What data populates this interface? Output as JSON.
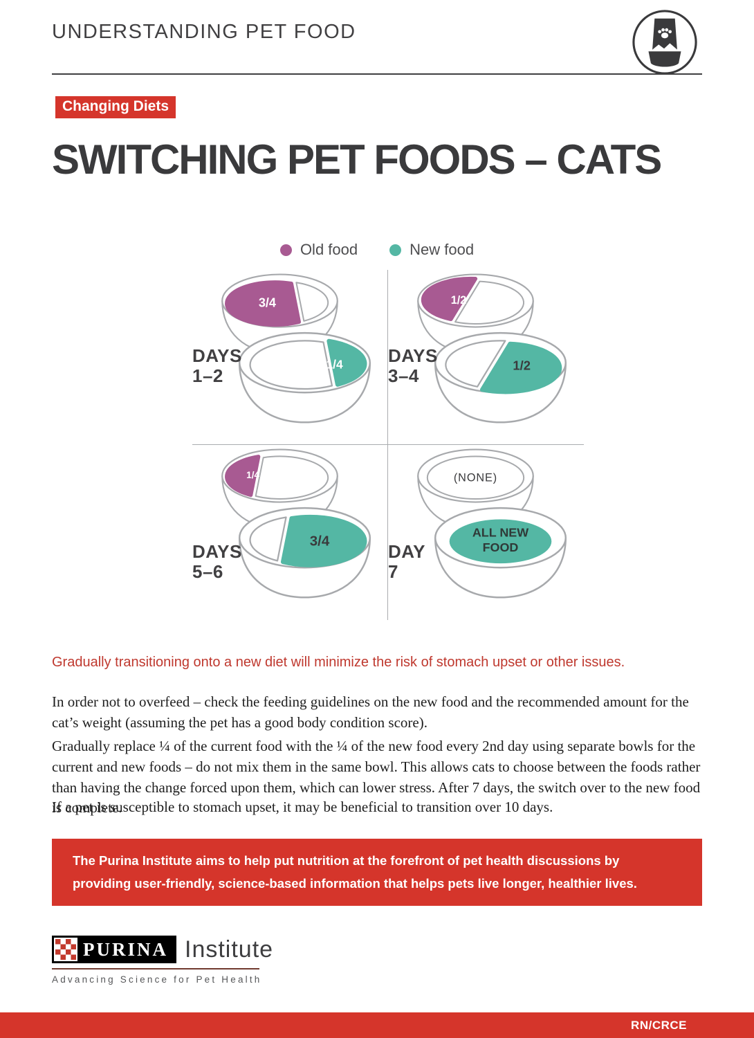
{
  "header": {
    "title": "UNDERSTANDING PET FOOD"
  },
  "badge": {
    "label": "Changing Diets"
  },
  "title": "SWITCHING PET FOODS – CATS",
  "legend": {
    "old": {
      "label": "Old food",
      "color": "#a85a92"
    },
    "new": {
      "label": "New food",
      "color": "#54b7a4"
    }
  },
  "diagram": {
    "quadrants": [
      {
        "day_label": [
          "DAYS",
          "1–2"
        ],
        "top_bowl": {
          "portion": "three_quarter_left",
          "food": "old",
          "value": "3/4",
          "text_color": "#ffffff"
        },
        "bottom_bowl": {
          "portion": "quarter_right",
          "food": "new",
          "value": "1/4",
          "text_color": "#ffffff"
        }
      },
      {
        "day_label": [
          "DAYS",
          "3–4"
        ],
        "top_bowl": {
          "portion": "half_left",
          "food": "old",
          "value": "1/2",
          "text_color": "#ffffff"
        },
        "bottom_bowl": {
          "portion": "half_right",
          "food": "new",
          "value": "1/2",
          "text_color": "#3a3a3c"
        }
      },
      {
        "day_label": [
          "DAYS",
          "5–6"
        ],
        "top_bowl": {
          "portion": "quarter_left",
          "food": "old",
          "value": "1/4",
          "text_color": "#ffffff"
        },
        "bottom_bowl": {
          "portion": "three_quarter_right",
          "food": "new",
          "value": "3/4",
          "text_color": "#3a3a3c"
        }
      },
      {
        "day_label": [
          "DAY",
          "7"
        ],
        "top_bowl": {
          "portion": "none",
          "food": null,
          "value": "(NONE)",
          "text_color": "#3a3a3c"
        },
        "bottom_bowl": {
          "portion": "full",
          "food": "new",
          "value": "ALL NEW\nFOOD",
          "text_color": "#2f3a38"
        }
      }
    ]
  },
  "highlight": "Gradually transitioning onto a new diet will minimize the risk of stomach upset or other issues.",
  "paragraphs": [
    "In order not to overfeed – check the feeding guidelines on the new food and the recommended amount for the cat’s weight (assuming the pet has a good body condition score).",
    "Gradually replace ¼ of the current food with the ¼ of the new food every 2nd day using separate bowls for the current and new foods – do not mix them in the same bowl. This allows cats to choose between the foods rather than having the change forced upon them, which can lower stress. After 7 days, the switch over to the new food is complete.",
    "If a pet is susceptible to stomach upset, it may be beneficial to transition over 10 days."
  ],
  "banner": "The Purina Institute aims to help put nutrition at the forefront of pet health discussions by providing user-friendly, science-based information that helps pets live longer, healthier lives.",
  "logo": {
    "brand": "PURINA",
    "suffix": "Institute",
    "tagline": "Advancing Science for Pet Health"
  },
  "footer": {
    "code": "RN/CRCE"
  },
  "colors": {
    "red": "#d5352b",
    "red_text": "#bf382e",
    "bowl_stroke": "#a7a9ac"
  }
}
